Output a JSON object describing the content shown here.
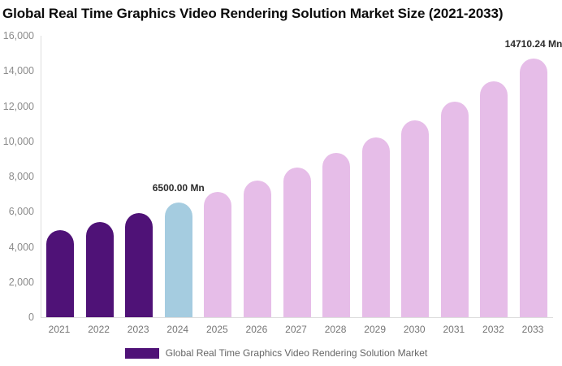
{
  "page": {
    "background": "#ffffff"
  },
  "title": "Global Real Time Graphics Video Rendering Solution Market Size (2021-2033)",
  "colors": {
    "historical": "#4F1277",
    "current": "#A5CCE0",
    "forecast": "#E6BDE8",
    "axis_line": "#DDDDDD",
    "tick_text": "#8B8B8B",
    "xlabel_text": "#757575",
    "annotation_text": "#2B2B2B",
    "legend_text": "#666666",
    "title_text": "#0B0B0B"
  },
  "chart_data": {
    "type": "bar",
    "title": "Global Real Time Graphics Video Rendering Solution Market Size (2021-2033)",
    "xlabel": "",
    "ylabel": "",
    "unit": "Mn",
    "categories": [
      "2021",
      "2022",
      "2023",
      "2024",
      "2025",
      "2026",
      "2027",
      "2028",
      "2029",
      "2030",
      "2031",
      "2032",
      "2033"
    ],
    "values": [
      4950,
      5420,
      5936,
      6500,
      7117,
      7793,
      8533,
      9343,
      10231,
      11203,
      12267,
      13433,
      14710.24
    ],
    "bar_colors": [
      "#4F1277",
      "#4F1277",
      "#4F1277",
      "#A5CCE0",
      "#E6BDE8",
      "#E6BDE8",
      "#E6BDE8",
      "#E6BDE8",
      "#E6BDE8",
      "#E6BDE8",
      "#E6BDE8",
      "#E6BDE8",
      "#E6BDE8"
    ],
    "ylim": [
      0,
      16000
    ],
    "grid": false,
    "yticks": [
      {
        "value": 0,
        "label": "0"
      },
      {
        "value": 2000,
        "label": "2,000"
      },
      {
        "value": 4000,
        "label": "4,000"
      },
      {
        "value": 6000,
        "label": "6,000"
      },
      {
        "value": 8000,
        "label": "8,000"
      },
      {
        "value": 10000,
        "label": "10,000"
      },
      {
        "value": 12000,
        "label": "12,000"
      },
      {
        "value": 14000,
        "label": "14,000"
      },
      {
        "value": 16000,
        "label": "16,000"
      }
    ],
    "annotations": [
      {
        "index": 3,
        "category": "2024",
        "text": "6500.00 Mn"
      },
      {
        "index": 12,
        "category": "2033",
        "text": "14710.24 Mn"
      }
    ],
    "legend_position": "bottom",
    "legend": [
      {
        "label": "Global Real Time Graphics Video Rendering Solution Market",
        "color": "#4F1277"
      }
    ]
  }
}
